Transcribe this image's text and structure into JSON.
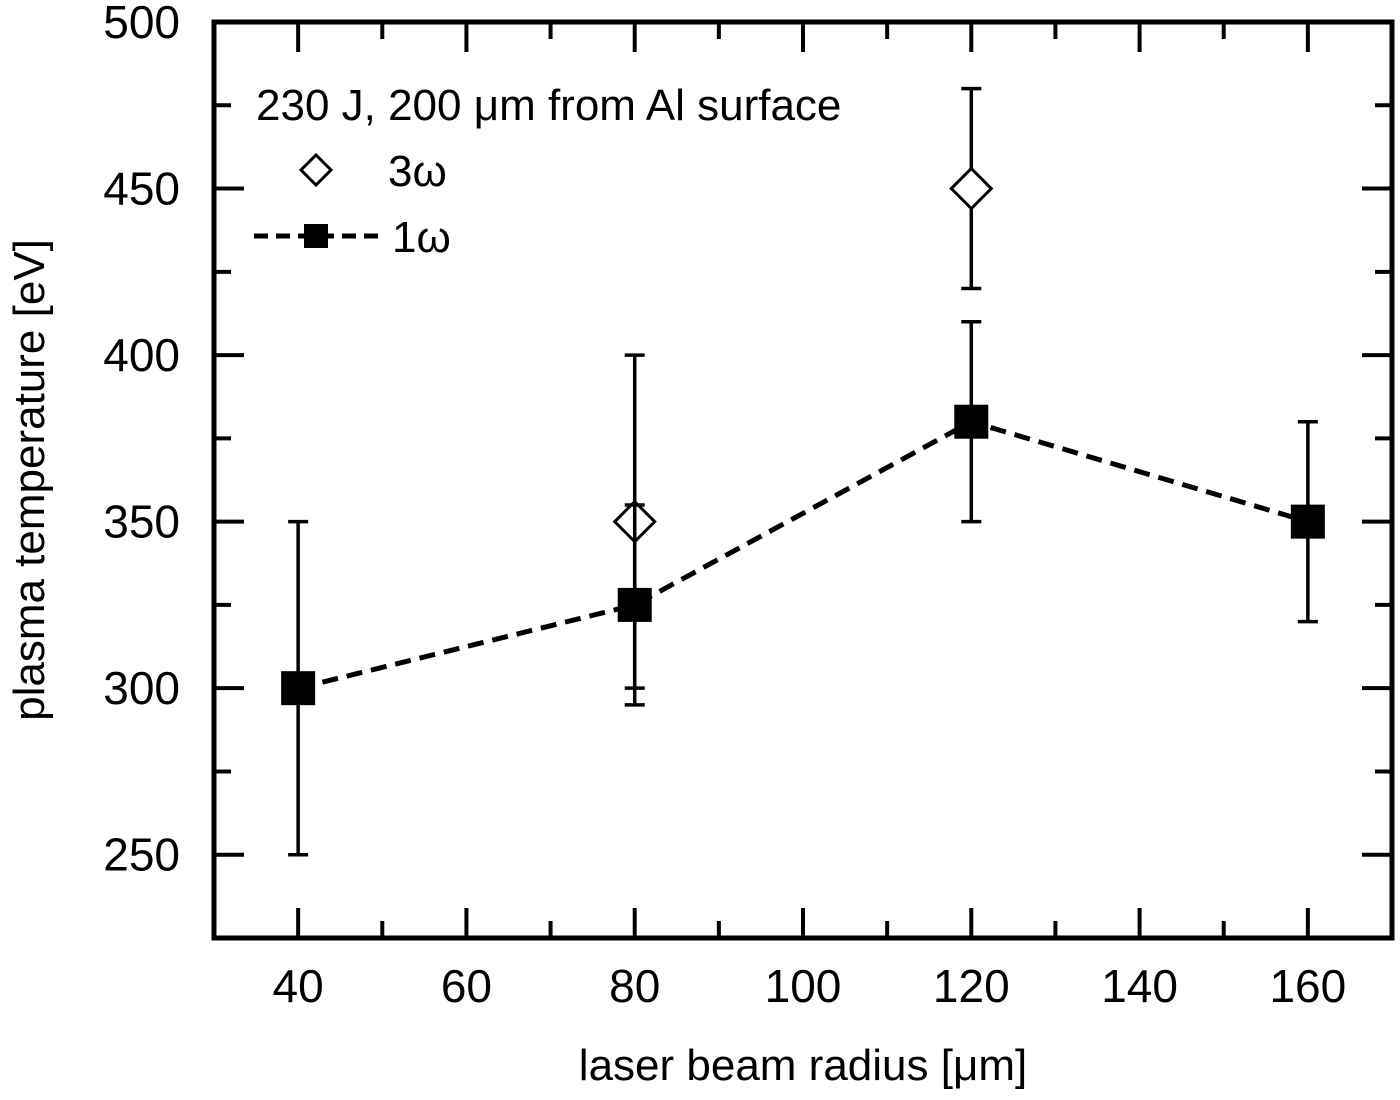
{
  "chart_data": {
    "type": "scatter",
    "xlabel": "laser beam radius [μm]",
    "ylabel": "plasma temperature [eV]",
    "xlim": [
      30,
      170
    ],
    "ylim": [
      225,
      500
    ],
    "xticks": [
      40,
      60,
      80,
      100,
      120,
      140,
      160
    ],
    "yticks": [
      250,
      300,
      350,
      400,
      450,
      500
    ],
    "grid": false,
    "legend_position": "top-left",
    "legend_title": "230 J, 200 μm from Al surface",
    "series": [
      {
        "name": "3ω",
        "marker": "open-diamond",
        "line": "none",
        "color": "#000000",
        "points": [
          {
            "x": 80,
            "y": 350,
            "ymin": 300,
            "ymax": 400
          },
          {
            "x": 120,
            "y": 450,
            "ymin": 420,
            "ymax": 480
          }
        ]
      },
      {
        "name": "1ω",
        "marker": "filled-square",
        "line": "dashed",
        "color": "#000000",
        "points": [
          {
            "x": 40,
            "y": 300,
            "ymin": 250,
            "ymax": 350
          },
          {
            "x": 80,
            "y": 325,
            "ymin": 295,
            "ymax": 355
          },
          {
            "x": 120,
            "y": 380,
            "ymin": 350,
            "ymax": 410
          },
          {
            "x": 160,
            "y": 350,
            "ymin": 320,
            "ymax": 380
          }
        ]
      }
    ]
  }
}
